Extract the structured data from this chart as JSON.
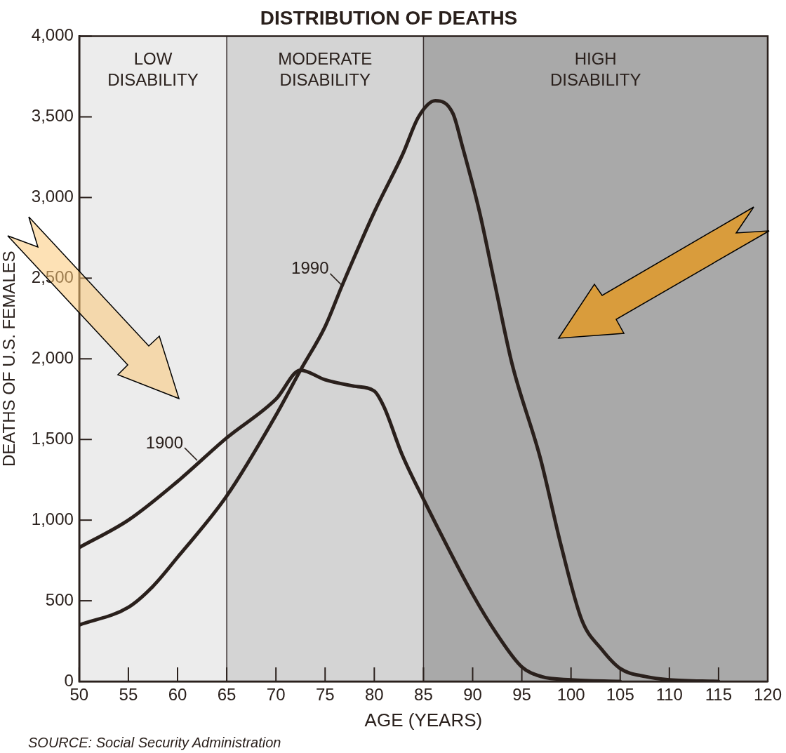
{
  "chart_data": {
    "type": "line",
    "title": "DISTRIBUTION OF DEATHS",
    "xlabel": "AGE (YEARS)",
    "ylabel": "DEATHS OF U.S. FEMALES",
    "xlim": [
      50,
      120
    ],
    "xticks": [
      50,
      55,
      60,
      65,
      70,
      75,
      80,
      85,
      90,
      95,
      100,
      105,
      110,
      115,
      120
    ],
    "ylim": [
      0,
      4000
    ],
    "yticks": [
      0,
      500,
      {
        "value": 1000,
        "label": "1,000"
      },
      {
        "value": 1500,
        "label": "1,500"
      },
      {
        "value": 2000,
        "label": "2,000"
      },
      {
        "value": 2500,
        "label": "2,500"
      },
      {
        "value": 3000,
        "label": "3,000"
      },
      {
        "value": 3500,
        "label": "3,500"
      },
      {
        "value": 4000,
        "label": "4,000"
      }
    ],
    "series": [
      {
        "color": "#2a201c",
        "x": [
          50,
          55,
          60,
          65,
          70,
          72.5,
          75,
          78,
          80,
          81,
          82.8,
          85,
          90,
          92.5,
          95,
          97,
          100,
          105
        ],
        "values": [
          830,
          1000,
          1240,
          1510,
          1750,
          1930,
          1870,
          1830,
          1800,
          1700,
          1410,
          1130,
          540,
          290,
          90,
          30,
          10,
          0
        ]
      },
      {
        "color": "#2a201c",
        "x": [
          50,
          55,
          57.5,
          60,
          65,
          70,
          72.5,
          75,
          76.7,
          80,
          82.9,
          84.5,
          86.2,
          88,
          88.9,
          90.7,
          92.2,
          94,
          96.9,
          99,
          101.1,
          103.1,
          105,
          107.6,
          110,
          115
        ],
        "values": [
          350,
          460,
          590,
          770,
          1150,
          1650,
          1930,
          2200,
          2450,
          2910,
          3270,
          3500,
          3600,
          3520,
          3330,
          2910,
          2480,
          1970,
          1380,
          840,
          380,
          200,
          80,
          30,
          10,
          0
        ]
      }
    ],
    "bands": [
      {
        "axis": "x",
        "from": 50,
        "to": 65,
        "label": "LOW DISABILITY",
        "color": "#ececec"
      },
      {
        "axis": "x",
        "from": 65,
        "to": 85,
        "label": "MODERATE DISABILITY",
        "color": "#d4d4d4"
      },
      {
        "axis": "x",
        "from": 85,
        "to": 120,
        "label": "HIGH DISABILITY",
        "color": "#a9a9a9"
      }
    ],
    "ref_lines": [
      {
        "axis": "x",
        "value": 65
      },
      {
        "axis": "x",
        "value": 85
      }
    ],
    "annotations": [
      {
        "text": "1900",
        "x": 62,
        "y": 1370
      },
      {
        "text": "1990",
        "x": 76.8,
        "y": 2450
      },
      "SOURCE: Social Security Administration"
    ],
    "grid": false,
    "legend": false,
    "marker": "none",
    "line_style": "solid"
  }
}
